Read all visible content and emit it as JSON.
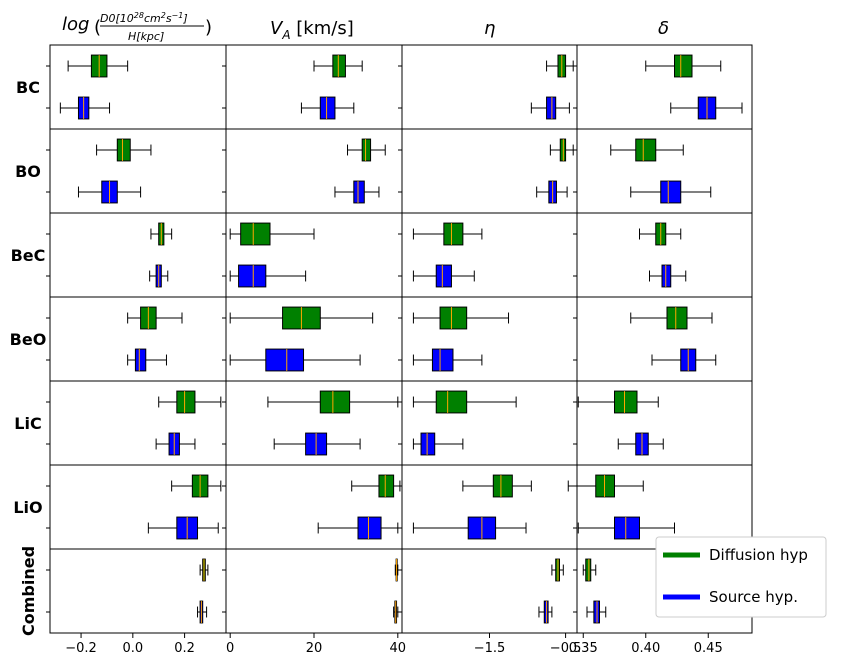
{
  "chart_data": {
    "type": "boxplot",
    "columns": [
      {
        "key": "D",
        "title_main": "log",
        "title_num": "D0[10",
        "title_num_exp1": "28",
        "title_num_mid": "cm",
        "title_num_exp2": "2",
        "title_num_s": "s",
        "title_num_exp3": "−1",
        "title_num_end": "]",
        "title_den": "H[kpc]",
        "xlim": [
          -0.32,
          0.36
        ],
        "ticks": [
          -0.2,
          0.0,
          0.2
        ],
        "tick_labels": [
          "−0.2",
          "0.0",
          "0.2"
        ]
      },
      {
        "key": "VA",
        "title_main": "V",
        "title_sub": "A",
        "title_rest": " [km/s]",
        "xlim": [
          -1,
          41
        ],
        "ticks": [
          0,
          20,
          40
        ],
        "tick_labels": [
          "0",
          "20",
          "40"
        ]
      },
      {
        "key": "eta",
        "title_main": "η",
        "xlim": [
          -2.65,
          -0.35
        ],
        "ticks": [
          -1.5,
          -0.5
        ],
        "tick_labels": [
          "−1.5",
          "−0.5"
        ]
      },
      {
        "key": "delta",
        "title_main": "δ",
        "xlim": [
          0.345,
          0.485
        ],
        "ticks": [
          0.35,
          0.4,
          0.45
        ],
        "tick_labels": [
          "0.35",
          "0.40",
          "0.45"
        ]
      }
    ],
    "rows": [
      {
        "label": "BC",
        "boxes": [
          [
            {
              "min": -0.25,
              "q1": -0.16,
              "med": -0.13,
              "q3": -0.1,
              "max": -0.02
            },
            {
              "min": -0.28,
              "q1": -0.21,
              "med": -0.19,
              "q3": -0.17,
              "max": -0.09
            }
          ],
          [
            {
              "min": 20,
              "q1": 24.5,
              "med": 25.8,
              "q3": 27.5,
              "max": 31.5
            },
            {
              "min": 17,
              "q1": 21.5,
              "med": 23,
              "q3": 25,
              "max": 29.5
            }
          ],
          [
            {
              "min": -0.75,
              "q1": -0.6,
              "med": -0.55,
              "q3": -0.5,
              "max": -0.4
            },
            {
              "min": -0.95,
              "q1": -0.75,
              "med": -0.68,
              "q3": -0.63,
              "max": -0.45
            }
          ],
          [
            {
              "min": 0.4,
              "q1": 0.423,
              "med": 0.428,
              "q3": 0.437,
              "max": 0.46
            },
            {
              "min": 0.42,
              "q1": 0.442,
              "med": 0.449,
              "q3": 0.456,
              "max": 0.477
            }
          ]
        ]
      },
      {
        "label": "BO",
        "boxes": [
          [
            {
              "min": -0.14,
              "q1": -0.06,
              "med": -0.04,
              "q3": -0.01,
              "max": 0.07
            },
            {
              "min": -0.21,
              "q1": -0.12,
              "med": -0.09,
              "q3": -0.06,
              "max": 0.03
            }
          ],
          [
            {
              "min": 28,
              "q1": 31.5,
              "med": 32.3,
              "q3": 33.5,
              "max": 37
            },
            {
              "min": 25,
              "q1": 29.5,
              "med": 30.5,
              "q3": 32,
              "max": 35.5
            }
          ],
          [
            {
              "min": -0.7,
              "q1": -0.57,
              "med": -0.53,
              "q3": -0.5,
              "max": -0.4
            },
            {
              "min": -0.88,
              "q1": -0.72,
              "med": -0.67,
              "q3": -0.62,
              "max": -0.48
            }
          ],
          [
            {
              "min": 0.372,
              "q1": 0.392,
              "med": 0.398,
              "q3": 0.408,
              "max": 0.43
            },
            {
              "min": 0.388,
              "q1": 0.412,
              "med": 0.418,
              "q3": 0.428,
              "max": 0.452
            }
          ]
        ]
      },
      {
        "label": "BeC",
        "boxes": [
          [
            {
              "min": 0.07,
              "q1": 0.1,
              "med": 0.11,
              "q3": 0.12,
              "max": 0.15
            },
            {
              "min": 0.065,
              "q1": 0.09,
              "med": 0.1,
              "q3": 0.11,
              "max": 0.135
            }
          ],
          [
            {
              "min": 0,
              "q1": 2.5,
              "med": 5.5,
              "q3": 9.5,
              "max": 20
            },
            {
              "min": 0,
              "q1": 2,
              "med": 5.5,
              "q3": 8.5,
              "max": 18
            }
          ],
          [
            {
              "min": -2.5,
              "q1": -2.1,
              "med": -2.0,
              "q3": -1.85,
              "max": -1.6
            },
            {
              "min": -2.5,
              "q1": -2.2,
              "med": -2.12,
              "q3": -2.0,
              "max": -1.7
            }
          ],
          [
            {
              "min": 0.395,
              "q1": 0.408,
              "med": 0.412,
              "q3": 0.416,
              "max": 0.428
            },
            {
              "min": 0.403,
              "q1": 0.413,
              "med": 0.416,
              "q3": 0.42,
              "max": 0.432
            }
          ]
        ]
      },
      {
        "label": "BeO",
        "boxes": [
          [
            {
              "min": -0.02,
              "q1": 0.03,
              "med": 0.06,
              "q3": 0.09,
              "max": 0.19
            },
            {
              "min": -0.02,
              "q1": 0.01,
              "med": 0.025,
              "q3": 0.05,
              "max": 0.13
            }
          ],
          [
            {
              "min": 0,
              "q1": 12.5,
              "med": 17,
              "q3": 21.5,
              "max": 34
            },
            {
              "min": 0,
              "q1": 8.5,
              "med": 13.5,
              "q3": 17.5,
              "max": 31
            }
          ],
          [
            {
              "min": -2.5,
              "q1": -2.15,
              "med": -2.0,
              "q3": -1.8,
              "max": -1.25
            },
            {
              "min": -2.5,
              "q1": -2.25,
              "med": -2.15,
              "q3": -1.98,
              "max": -1.6
            }
          ],
          [
            {
              "min": 0.388,
              "q1": 0.417,
              "med": 0.424,
              "q3": 0.433,
              "max": 0.453
            },
            {
              "min": 0.405,
              "q1": 0.428,
              "med": 0.434,
              "q3": 0.44,
              "max": 0.456
            }
          ]
        ]
      },
      {
        "label": "LiC",
        "boxes": [
          [
            {
              "min": 0.1,
              "q1": 0.17,
              "med": 0.2,
              "q3": 0.24,
              "max": 0.34
            },
            {
              "min": 0.09,
              "q1": 0.14,
              "med": 0.16,
              "q3": 0.18,
              "max": 0.24
            }
          ],
          [
            {
              "min": 9,
              "q1": 21.5,
              "med": 24.5,
              "q3": 28.5,
              "max": 40
            },
            {
              "min": 10.5,
              "q1": 18,
              "med": 20.5,
              "q3": 23,
              "max": 31
            }
          ],
          [
            {
              "min": -2.5,
              "q1": -2.2,
              "med": -2.05,
              "q3": -1.8,
              "max": -1.15
            },
            {
              "min": -2.5,
              "q1": -2.4,
              "med": -2.32,
              "q3": -2.22,
              "max": -1.85
            }
          ],
          [
            {
              "min": 0.346,
              "q1": 0.375,
              "med": 0.383,
              "q3": 0.393,
              "max": 0.41
            },
            {
              "min": 0.378,
              "q1": 0.392,
              "med": 0.397,
              "q3": 0.402,
              "max": 0.414
            }
          ]
        ]
      },
      {
        "label": "LiO",
        "boxes": [
          [
            {
              "min": 0.15,
              "q1": 0.23,
              "med": 0.26,
              "q3": 0.29,
              "max": 0.34
            },
            {
              "min": 0.06,
              "q1": 0.17,
              "med": 0.21,
              "q3": 0.25,
              "max": 0.33
            }
          ],
          [
            {
              "min": 29,
              "q1": 35.5,
              "med": 37,
              "q3": 39,
              "max": 40.5
            },
            {
              "min": 21,
              "q1": 30.5,
              "med": 33,
              "q3": 36,
              "max": 40
            }
          ],
          [
            {
              "min": -1.85,
              "q1": -1.45,
              "med": -1.35,
              "q3": -1.2,
              "max": -0.95
            },
            {
              "min": -2.5,
              "q1": -1.78,
              "med": -1.6,
              "q3": -1.42,
              "max": -1.02
            }
          ],
          [
            {
              "min": 0.338,
              "q1": 0.36,
              "med": 0.367,
              "q3": 0.375,
              "max": 0.398
            },
            {
              "min": 0.346,
              "q1": 0.375,
              "med": 0.384,
              "q3": 0.395,
              "max": 0.423
            }
          ]
        ]
      },
      {
        "label": "Combined",
        "boxes": [
          [
            {
              "min": 0.26,
              "q1": 0.27,
              "med": 0.275,
              "q3": 0.28,
              "max": 0.29
            },
            {
              "min": 0.25,
              "q1": 0.26,
              "med": 0.265,
              "q3": 0.27,
              "max": 0.285
            }
          ],
          [
            {
              "min": 39.4,
              "q1": 39.6,
              "med": 39.7,
              "q3": 39.85,
              "max": 40
            },
            {
              "min": 39,
              "q1": 39.3,
              "med": 39.5,
              "q3": 39.7,
              "max": 40
            }
          ],
          [
            {
              "min": -0.68,
              "q1": -0.63,
              "med": -0.6,
              "q3": -0.58,
              "max": -0.53
            },
            {
              "min": -0.85,
              "q1": -0.78,
              "med": -0.75,
              "q3": -0.73,
              "max": -0.68
            }
          ],
          [
            {
              "min": 0.35,
              "q1": 0.352,
              "med": 0.3545,
              "q3": 0.356,
              "max": 0.36
            },
            {
              "min": 0.353,
              "q1": 0.3585,
              "med": 0.361,
              "q3": 0.363,
              "max": 0.368
            }
          ]
        ]
      }
    ],
    "series": [
      {
        "name": "Diffusion hyp",
        "color": "#008000"
      },
      {
        "name": "Source hyp.",
        "color": "#0000ff"
      }
    ],
    "median_color": "#ffa500",
    "legend_position": "bottom-right"
  }
}
